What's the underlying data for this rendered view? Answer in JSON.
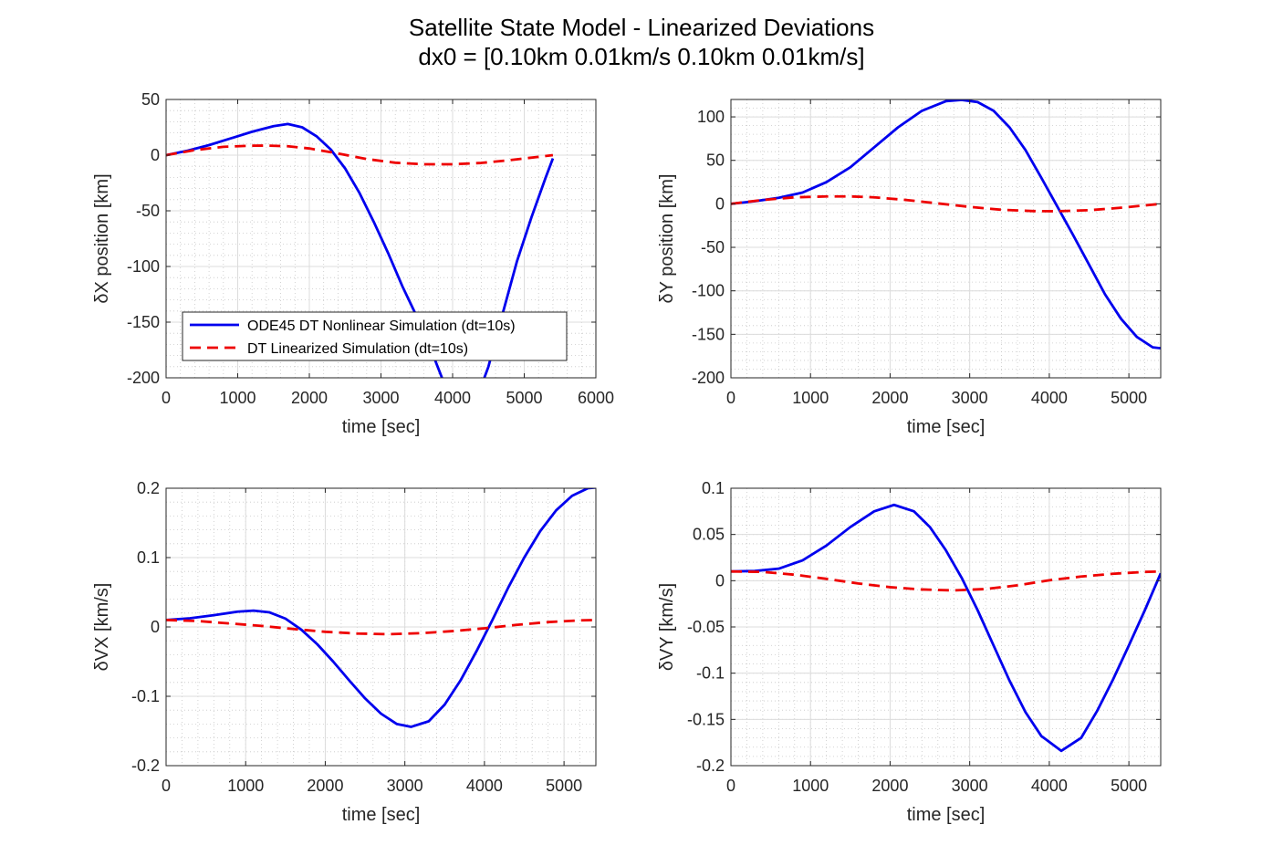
{
  "figure": {
    "title_line1": "Satellite State Model - Linearized Deviations",
    "title_line2": "dx0 = [0.10km 0.01km/s 0.10km 0.01km/s]"
  },
  "colors": {
    "nonlinear": "#0000ee",
    "linearized": "#ee0000",
    "axis": "#262626",
    "major_grid": "#dcdcdc",
    "minor_grid": "#c8c8c8"
  },
  "legend": {
    "entries": [
      "ODE45 DT Nonlinear Simulation (dt=10s)",
      "DT Linearized Simulation (dt=10s)"
    ]
  },
  "chart_data": [
    {
      "type": "line",
      "xlabel": "time [sec]",
      "ylabel": "δX position [km]",
      "xlim": [
        0,
        6000
      ],
      "ylim": [
        -200,
        50
      ],
      "xticks": [
        0,
        1000,
        2000,
        3000,
        4000,
        5000,
        6000
      ],
      "yticks": [
        -200,
        -150,
        -100,
        -50,
        0,
        50
      ],
      "grid": true,
      "minor_grid": true,
      "legend_position": "bottom-left",
      "series": [
        {
          "name": "ODE45 DT Nonlinear Simulation (dt=10s)",
          "style": "solid",
          "x": [
            0,
            300,
            600,
            900,
            1200,
            1500,
            1700,
            1900,
            2100,
            2300,
            2500,
            2700,
            2900,
            3100,
            3300,
            3500,
            3700,
            3900,
            4100,
            4300,
            4500,
            4700,
            4900,
            5100,
            5300,
            5400
          ],
          "y": [
            0,
            4,
            9,
            15,
            21,
            26,
            28,
            25,
            17,
            5,
            -12,
            -34,
            -60,
            -88,
            -118,
            -145,
            -175,
            -208,
            -230,
            -225,
            -190,
            -142,
            -95,
            -56,
            -20,
            -3
          ]
        },
        {
          "name": "DT Linearized Simulation (dt=10s)",
          "style": "dashed",
          "x": [
            0,
            400,
            800,
            1200,
            1400,
            1700,
            2000,
            2400,
            2800,
            3200,
            3600,
            4000,
            4400,
            4800,
            5200,
            5400
          ],
          "y": [
            0,
            4.5,
            7.5,
            8.5,
            8.6,
            8,
            6,
            1.5,
            -3.5,
            -6.8,
            -8.2,
            -8.2,
            -7,
            -4.5,
            -1.5,
            0
          ]
        }
      ]
    },
    {
      "type": "line",
      "xlabel": "time [sec]",
      "ylabel": "δY position [km]",
      "xlim": [
        0,
        5400
      ],
      "ylim": [
        -200,
        120
      ],
      "xticks": [
        0,
        1000,
        2000,
        3000,
        4000,
        5000
      ],
      "yticks": [
        -200,
        -150,
        -100,
        -50,
        0,
        50,
        100
      ],
      "grid": true,
      "minor_grid": true,
      "series": [
        {
          "name": "ODE45 DT Nonlinear Simulation (dt=10s)",
          "style": "solid",
          "x": [
            0,
            300,
            600,
            900,
            1200,
            1500,
            1800,
            2100,
            2400,
            2700,
            2900,
            3100,
            3300,
            3500,
            3700,
            3900,
            4100,
            4300,
            4500,
            4700,
            4900,
            5100,
            5300,
            5400
          ],
          "y": [
            0,
            3,
            7,
            13,
            25,
            42,
            65,
            88,
            107,
            118,
            119.5,
            117,
            107,
            88,
            62,
            30,
            -3,
            -36,
            -70,
            -104,
            -132,
            -153,
            -165,
            -166
          ]
        },
        {
          "name": "DT Linearized Simulation (dt=10s)",
          "style": "dashed",
          "x": [
            0,
            400,
            800,
            1200,
            1500,
            1800,
            2200,
            2600,
            3000,
            3400,
            3800,
            4100,
            4500,
            4900,
            5200,
            5400
          ],
          "y": [
            0,
            4.5,
            7.5,
            8.5,
            8.5,
            7.5,
            4.5,
            0.5,
            -3.5,
            -6.8,
            -8.3,
            -8.5,
            -7.3,
            -4.5,
            -1.8,
            0
          ]
        }
      ]
    },
    {
      "type": "line",
      "xlabel": "time [sec]",
      "ylabel": "δVX [km/s]",
      "xlim": [
        0,
        5400
      ],
      "ylim": [
        -0.2,
        0.2
      ],
      "xticks": [
        0,
        1000,
        2000,
        3000,
        4000,
        5000
      ],
      "yticks": [
        -0.2,
        -0.1,
        0,
        0.1,
        0.2
      ],
      "grid": true,
      "minor_grid": true,
      "series": [
        {
          "name": "ODE45 DT Nonlinear Simulation (dt=10s)",
          "style": "solid",
          "x": [
            0,
            300,
            600,
            900,
            1100,
            1300,
            1500,
            1700,
            1900,
            2100,
            2300,
            2500,
            2700,
            2900,
            3080,
            3300,
            3500,
            3700,
            3900,
            4100,
            4300,
            4500,
            4700,
            4900,
            5100,
            5300,
            5400
          ],
          "y": [
            0.01,
            0.0125,
            0.017,
            0.022,
            0.0235,
            0.021,
            0.012,
            -0.004,
            -0.025,
            -0.05,
            -0.077,
            -0.103,
            -0.125,
            -0.14,
            -0.144,
            -0.136,
            -0.112,
            -0.077,
            -0.035,
            0.01,
            0.057,
            0.1,
            0.138,
            0.168,
            0.189,
            0.2,
            0.201
          ]
        },
        {
          "name": "DT Linearized Simulation (dt=10s)",
          "style": "dashed",
          "x": [
            0,
            400,
            800,
            1200,
            1600,
            2000,
            2400,
            2800,
            3200,
            3600,
            4000,
            4400,
            4800,
            5200,
            5400
          ],
          "y": [
            0.01,
            0.0085,
            0.005,
            0.0015,
            -0.003,
            -0.007,
            -0.0095,
            -0.0105,
            -0.009,
            -0.006,
            -0.002,
            0.003,
            0.007,
            0.0095,
            0.01
          ]
        }
      ]
    },
    {
      "type": "line",
      "xlabel": "time [sec]",
      "ylabel": "δVY [km/s]",
      "xlim": [
        0,
        5400
      ],
      "ylim": [
        -0.2,
        0.1
      ],
      "xticks": [
        0,
        1000,
        2000,
        3000,
        4000,
        5000
      ],
      "yticks": [
        -0.2,
        -0.15,
        -0.1,
        -0.05,
        0,
        0.05,
        0.1
      ],
      "grid": true,
      "minor_grid": true,
      "series": [
        {
          "name": "ODE45 DT Nonlinear Simulation (dt=10s)",
          "style": "solid",
          "x": [
            0,
            300,
            600,
            900,
            1200,
            1500,
            1800,
            2050,
            2300,
            2500,
            2700,
            2900,
            3100,
            3300,
            3500,
            3700,
            3900,
            4150,
            4400,
            4600,
            4800,
            5000,
            5200,
            5400
          ],
          "y": [
            0.01,
            0.0105,
            0.013,
            0.022,
            0.038,
            0.058,
            0.075,
            0.082,
            0.075,
            0.058,
            0.033,
            0.003,
            -0.032,
            -0.07,
            -0.108,
            -0.142,
            -0.168,
            -0.184,
            -0.17,
            -0.141,
            -0.107,
            -0.07,
            -0.032,
            0.008
          ]
        },
        {
          "name": "DT Linearized Simulation (dt=10s)",
          "style": "dashed",
          "x": [
            0,
            400,
            800,
            1200,
            1600,
            2000,
            2400,
            2800,
            3200,
            3600,
            4000,
            4400,
            4800,
            5200,
            5400
          ],
          "y": [
            0.01,
            0.0095,
            0.0065,
            0.002,
            -0.003,
            -0.007,
            -0.0095,
            -0.0105,
            -0.009,
            -0.005,
            0.0005,
            0.0045,
            0.0075,
            0.0095,
            0.01
          ]
        }
      ]
    }
  ]
}
